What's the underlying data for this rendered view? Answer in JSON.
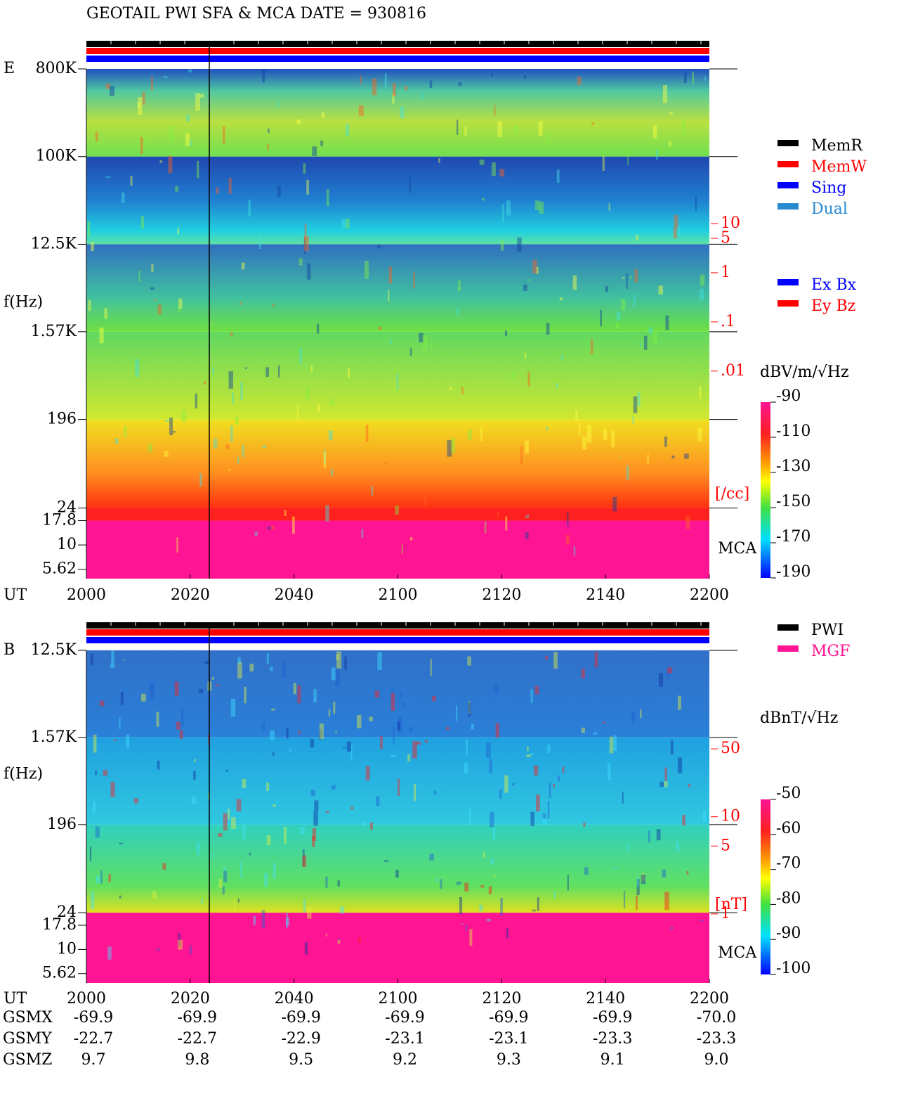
{
  "title": "GEOTAIL   PWI SFA & MCA   DATE = 930816",
  "chart_data": [
    {
      "type": "spectrogram",
      "panel_label": "E",
      "ylabel": "f(Hz)",
      "xlabel": "UT",
      "yscale": "log",
      "ylim": [
        4.5,
        800000
      ],
      "yticks": [
        {
          "value": 800000,
          "label": "800K"
        },
        {
          "value": 100000,
          "label": "100K"
        },
        {
          "value": 12500,
          "label": "12.5K"
        },
        {
          "value": 1570,
          "label": "1.57K"
        },
        196,
        24,
        17.8,
        10,
        5.62
      ],
      "categories": [
        "2000",
        "2020",
        "2040",
        "2100",
        "2120",
        "2140",
        "2200"
      ],
      "colorbar": {
        "label": "dBV/m/√Hz",
        "zlim": [
          -90,
          -190
        ],
        "ticks": [
          -90,
          -110,
          -130,
          -150,
          -170,
          -190
        ]
      },
      "y2scale": "log",
      "y2lim": [
        6e-07,
        14000
      ],
      "y2ticks": [
        10,
        5,
        1,
        {
          "value": 0.1,
          "label": ".1"
        },
        {
          "value": 0.01,
          "label": ".01"
        }
      ],
      "y2label": "[/cc]",
      "mca_label": "MCA",
      "legends": [
        [
          {
            "name": "MemR",
            "color": "#000000"
          },
          {
            "name": "MemW",
            "color": "#ff0000"
          },
          {
            "name": "Sing",
            "color": "#0000ff"
          },
          {
            "name": "Dual",
            "color": "#2a8ad0"
          }
        ],
        [
          {
            "name": "Ex Bx",
            "color": "#0000ff"
          },
          {
            "name": "Ey Bz",
            "color": "#ff0000"
          }
        ]
      ]
    },
    {
      "type": "spectrogram",
      "panel_label": "B",
      "ylabel": "f(Hz)",
      "xlabel": "UT",
      "yscale": "log",
      "ylim": [
        4.5,
        12500
      ],
      "yticks": [
        {
          "value": 12500,
          "label": "12.5K"
        },
        {
          "value": 1570,
          "label": "1.57K"
        },
        196,
        24,
        17.8,
        10,
        5.62
      ],
      "categories": [
        "2000",
        "2020",
        "2040",
        "2100",
        "2120",
        "2140",
        "2200"
      ],
      "colorbar": {
        "label": "dBnT/√Hz",
        "zlim": [
          -50,
          -100
        ],
        "ticks": [
          -50,
          -60,
          -70,
          -80,
          -90,
          -100
        ]
      },
      "y2scale": "log",
      "y2lim": [
        0.195,
        516
      ],
      "y2ticks": [
        50,
        10,
        5,
        1
      ],
      "y2label": "[nT]",
      "mca_label": "MCA",
      "legends": [
        [
          {
            "name": "PWI",
            "color": "#000000"
          },
          {
            "name": "MGF",
            "color": "#ff1493"
          }
        ]
      ]
    }
  ],
  "orbit": {
    "rows": [
      {
        "label": "GSMX",
        "values": [
          "-69.9",
          "-69.9",
          "-69.9",
          "-69.9",
          "-69.9",
          "-69.9",
          "-70.0"
        ]
      },
      {
        "label": "GSMY",
        "values": [
          "-22.7",
          "-22.7",
          "-22.9",
          "-23.1",
          "-23.1",
          "-23.3",
          "-23.3"
        ]
      },
      {
        "label": "GSMZ",
        "values": [
          "9.7",
          "9.8",
          "9.5",
          "9.2",
          "9.3",
          "9.1",
          "9.0"
        ]
      }
    ]
  }
}
